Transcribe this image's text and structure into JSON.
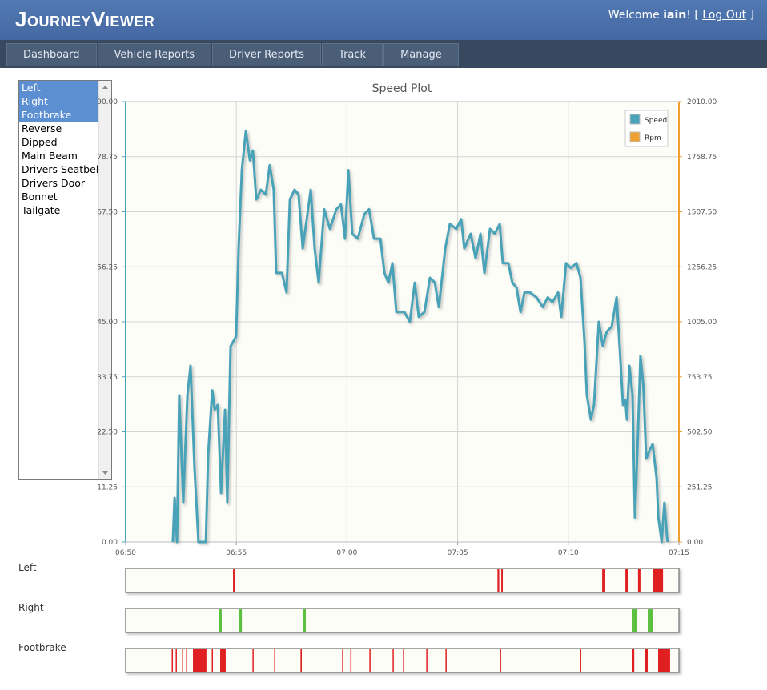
{
  "header": {
    "title": "JourneyViewer",
    "welcome": "Welcome",
    "user": "iain",
    "punctuation": [
      "!",
      "[",
      "]"
    ],
    "logout": "Log Out"
  },
  "nav": {
    "items": [
      "Dashboard",
      "Vehicle Reports",
      "Driver Reports",
      "Track",
      "Manage"
    ]
  },
  "signals": {
    "items": [
      "Left",
      "Right",
      "Footbrake",
      "Reverse",
      "Dipped",
      "Main Beam",
      "Drivers Seatbelt",
      "Drivers Door",
      "Bonnet",
      "Tailgate"
    ],
    "selected": [
      0,
      1,
      2
    ]
  },
  "chart_data": {
    "type": "line",
    "title": "Speed Plot",
    "x": [
      412.13,
      412.21,
      412.32,
      412.42,
      412.6,
      412.79,
      412.93,
      413.11,
      413.29,
      413.62,
      413.73,
      413.91,
      414.02,
      414.16,
      414.31,
      414.49,
      414.59,
      414.74,
      414.99,
      415.1,
      415.25,
      415.43,
      415.61,
      415.75,
      415.9,
      416.11,
      416.33,
      416.51,
      416.69,
      416.8,
      417.06,
      417.27,
      417.42,
      417.63,
      417.81,
      418.0,
      418.18,
      418.36,
      418.54,
      418.72,
      418.97,
      419.23,
      419.52,
      419.73,
      419.91,
      420.06,
      420.24,
      420.49,
      420.78,
      421.0,
      421.22,
      421.51,
      421.69,
      421.87,
      422.05,
      422.23,
      422.59,
      422.84,
      423.06,
      423.24,
      423.5,
      423.75,
      423.97,
      424.15,
      424.44,
      424.65,
      424.94,
      425.16,
      425.3,
      425.59,
      425.81,
      426.03,
      426.21,
      426.46,
      426.68,
      426.9,
      427.04,
      427.29,
      427.47,
      427.66,
      427.84,
      428.02,
      428.27,
      428.56,
      428.85,
      429.07,
      429.28,
      429.54,
      429.68,
      429.9,
      430.12,
      430.37,
      430.55,
      430.73,
      430.84,
      431.02,
      431.16,
      431.38,
      431.56,
      431.74,
      431.96,
      432.18,
      432.32,
      432.47,
      432.58,
      432.65,
      432.76,
      432.9,
      433.01,
      433.12,
      433.26,
      433.39,
      433.52,
      433.7,
      433.81,
      433.99,
      434.07,
      434.22,
      434.34,
      434.48
    ],
    "series": [
      {
        "name": "Speed",
        "color": "#4aa3b8",
        "values": [
          0,
          9,
          0,
          30,
          8,
          30,
          36,
          15,
          0,
          0,
          18,
          31,
          27,
          28,
          10,
          27,
          8,
          40,
          42,
          60,
          76,
          84,
          78,
          80,
          70,
          72,
          71,
          77,
          72,
          55,
          55,
          51,
          70,
          72,
          71,
          60,
          66,
          72,
          60,
          53,
          68,
          64,
          68,
          69,
          62,
          76,
          63,
          62,
          67,
          68,
          62,
          62,
          55,
          53,
          57,
          47,
          47,
          45,
          53,
          46,
          47,
          54,
          53,
          48,
          60,
          65,
          64,
          66,
          60,
          63,
          58,
          63,
          55,
          64,
          63,
          65,
          57,
          57,
          53,
          52,
          47,
          51,
          51,
          50,
          48,
          50,
          49,
          51,
          46,
          57,
          56,
          57,
          54,
          41,
          30,
          25,
          28,
          45,
          40,
          43,
          44,
          50,
          40,
          28,
          29,
          25,
          36,
          30,
          5,
          18,
          38,
          32,
          17,
          19,
          20,
          13,
          5,
          0,
          8,
          0
        ]
      },
      {
        "name": "Rpm",
        "color": "#f0a030",
        "axis": "y2",
        "hidden": true
      }
    ],
    "xlim": [
      410,
      435
    ],
    "xticks": [
      {
        "value": 410,
        "label": "06:50"
      },
      {
        "value": 415,
        "label": "06:55"
      },
      {
        "value": 420,
        "label": "07:00"
      },
      {
        "value": 425,
        "label": "07:05"
      },
      {
        "value": 430,
        "label": "07:10"
      },
      {
        "value": 435,
        "label": "07:15"
      }
    ],
    "ylim": [
      0,
      90
    ],
    "yticks": [
      {
        "value": 0,
        "label": "0.00"
      },
      {
        "value": 11.25,
        "label": "11.25"
      },
      {
        "value": 22.5,
        "label": "22.50"
      },
      {
        "value": 33.75,
        "label": "33.75"
      },
      {
        "value": 45,
        "label": "45.00"
      },
      {
        "value": 56.25,
        "label": "56.25"
      },
      {
        "value": 67.5,
        "label": "67.50"
      },
      {
        "value": 78.75,
        "label": "78.75"
      },
      {
        "value": 90,
        "label": "90.00"
      }
    ],
    "y2lim": [
      0,
      2010
    ],
    "y2ticks": [
      {
        "value": 0,
        "label": "0.00"
      },
      {
        "value": 251.25,
        "label": "251.25"
      },
      {
        "value": 502.5,
        "label": "502.50"
      },
      {
        "value": 753.75,
        "label": "753.75"
      },
      {
        "value": 1005,
        "label": "1005.00"
      },
      {
        "value": 1256.25,
        "label": "1256.25"
      },
      {
        "value": 1507.5,
        "label": "1507.50"
      },
      {
        "value": 1758.75,
        "label": "1758.75"
      },
      {
        "value": 2010,
        "label": "2010.00"
      }
    ],
    "grid": true,
    "legend": "top-right"
  },
  "event_strips": {
    "xlim": [
      410,
      435
    ],
    "rows": [
      {
        "name": "Left",
        "color": "#e02020",
        "events": [
          [
            414.85,
            414.92
          ],
          [
            426.8,
            426.88
          ],
          [
            426.97,
            427.04
          ],
          [
            431.53,
            431.67
          ],
          [
            432.58,
            432.72
          ],
          [
            433.15,
            433.26
          ],
          [
            433.81,
            434.28
          ]
        ]
      },
      {
        "name": "Right",
        "color": "#5cc040",
        "events": [
          [
            414.23,
            414.34
          ],
          [
            415.1,
            415.25
          ],
          [
            418.0,
            418.14
          ],
          [
            432.9,
            433.12
          ],
          [
            433.59,
            433.81
          ]
        ]
      },
      {
        "name": "Footbrake",
        "color": "#e02020",
        "events": [
          [
            412.08,
            412.12
          ],
          [
            412.26,
            412.3
          ],
          [
            412.55,
            412.59
          ],
          [
            412.73,
            412.77
          ],
          [
            413.04,
            413.65
          ],
          [
            413.89,
            413.93
          ],
          [
            414.27,
            414.52
          ],
          [
            415.73,
            415.77
          ],
          [
            416.71,
            416.75
          ],
          [
            417.9,
            417.96
          ],
          [
            419.78,
            419.82
          ],
          [
            420.15,
            420.19
          ],
          [
            421.01,
            421.05
          ],
          [
            422.06,
            422.1
          ],
          [
            422.53,
            422.57
          ],
          [
            423.58,
            423.62
          ],
          [
            424.45,
            424.49
          ],
          [
            426.91,
            426.95
          ],
          [
            430.53,
            430.57
          ],
          [
            432.87,
            432.98
          ],
          [
            433.45,
            433.59
          ],
          [
            434.06,
            434.6
          ]
        ]
      }
    ]
  }
}
